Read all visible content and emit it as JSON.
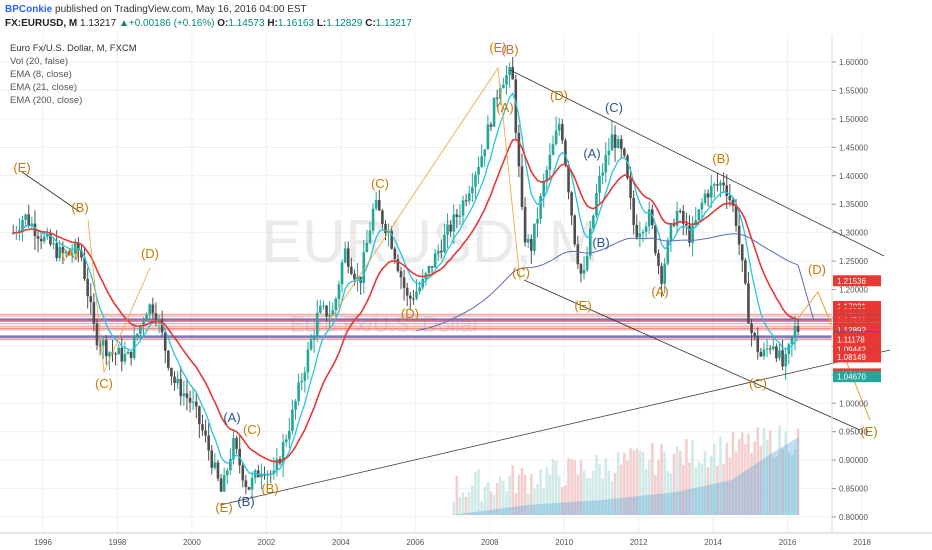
{
  "header": {
    "user": "BPConkie",
    "published": " published on TradingView.com, May 16, 2016 04:00 EST",
    "symbol": "FX:EURUSD, M",
    "last": "1.13217",
    "change": "+0.00186 (+0.16%)",
    "o_label": "O:",
    "o": "1.14573",
    "h_label": "H:",
    "h": "1.16163",
    "l_label": "L:",
    "l": "1.12829",
    "c_label": "C:",
    "c": "1.13217"
  },
  "legend": [
    "Euro Fx/U.S. Dollar, M, FXCM",
    "Vol (20, false)",
    "EMA (8, close)",
    "EMA (21, close)",
    "EMA (200, close)"
  ],
  "watermark": {
    "symbol": "EURUSD, M",
    "name": "Euro Fx/U.S. Dollar"
  },
  "colors": {
    "up": "#26a69a",
    "down": "#4e4e4e",
    "ema8": "#26c6da",
    "ema21": "#e53935",
    "ema200": "#5c6bc0",
    "wave_orange": "#c77a00",
    "wave_blue": "#2b5390",
    "hline_red": "#e53935",
    "hline_blue": "#3f51b5"
  },
  "chart_data": {
    "type": "candlestick",
    "x_ticks": [
      "1996",
      "1998",
      "2000",
      "2002",
      "2004",
      "2006",
      "2008",
      "2010",
      "2012",
      "2014",
      "2016",
      "2018"
    ],
    "y_ticks": [
      "1.60000",
      "1.55000",
      "1.50000",
      "1.45000",
      "1.40000",
      "1.35000",
      "1.30000",
      "1.25000",
      "1.20000",
      "1.15000",
      "1.10000",
      "1.05000",
      "1.00000",
      "0.95000",
      "0.90000",
      "0.85000",
      "0.80000"
    ],
    "y_range": [
      0.79,
      1.64
    ],
    "price_tags": [
      {
        "y": 1.21536,
        "label": "1.21536",
        "color": "#e53935"
      },
      {
        "y": 1.17021,
        "label": "1.17021",
        "color": "#e53935"
      },
      {
        "y": 1.1618,
        "label": "1.16180",
        "color": "#e53935"
      },
      {
        "y": 1.15647,
        "label": "1.15647",
        "color": "#e53935"
      },
      {
        "y": 1.15333,
        "label": "1.15333",
        "color": "#e53935"
      },
      {
        "y": 1.14863,
        "label": "1.14863",
        "color": "#e53935"
      },
      {
        "y": 1.14595,
        "label": "1.14595",
        "color": "#3f51b5"
      },
      {
        "y": 1.14541,
        "label": "1.14541",
        "color": "#e53935"
      },
      {
        "y": 1.13999,
        "label": "1.13999",
        "color": "#e53935"
      },
      {
        "y": 1.13563,
        "label": "1.13563",
        "color": "#e53935"
      },
      {
        "y": 1.13217,
        "label": "1.13217",
        "color": "#9e9e9e"
      },
      {
        "y": 1.13161,
        "label": "1.13161",
        "color": "#e53935"
      },
      {
        "y": 1.12892,
        "label": "1.12892",
        "color": "#e53935"
      },
      {
        "y": 1.11676,
        "label": "1.11676",
        "color": "#3f51b5"
      },
      {
        "y": 1.11524,
        "label": "1.11524",
        "color": "#e53935"
      },
      {
        "y": 1.11178,
        "label": "1.11178",
        "color": "#e53935"
      },
      {
        "y": 1.09442,
        "label": "1.09442",
        "color": "#e53935"
      },
      {
        "y": 1.08245,
        "label": "1.08245",
        "color": "#e53935"
      },
      {
        "y": 1.08149,
        "label": "1.08149",
        "color": "#e53935"
      },
      {
        "y": 1.0516,
        "label": "1.05160",
        "color": "#e53935"
      },
      {
        "y": 1.0467,
        "label": "1.04670",
        "color": "#26a69a"
      }
    ],
    "waves": [
      {
        "t": "(E)",
        "c": "o",
        "x": 22,
        "y": 172
      },
      {
        "t": "(B)",
        "c": "o",
        "x": 80,
        "y": 212
      },
      {
        "t": "(A)",
        "c": "o",
        "x": 70,
        "y": 258
      },
      {
        "t": "(D)",
        "c": "o",
        "x": 150,
        "y": 258
      },
      {
        "t": "(C)",
        "c": "o",
        "x": 104,
        "y": 388
      },
      {
        "t": "(A)",
        "c": "b",
        "x": 232,
        "y": 422
      },
      {
        "t": "(C)",
        "c": "o",
        "x": 252,
        "y": 434
      },
      {
        "t": "(B)",
        "c": "o",
        "x": 270,
        "y": 493
      },
      {
        "t": "(E)",
        "c": "o",
        "x": 224,
        "y": 512
      },
      {
        "t": "(B)",
        "c": "b",
        "x": 246,
        "y": 506
      },
      {
        "t": "(C)",
        "c": "o",
        "x": 380,
        "y": 188
      },
      {
        "t": "(D)",
        "c": "o",
        "x": 410,
        "y": 318
      },
      {
        "t": "(E)",
        "c": "o",
        "x": 498,
        "y": 52
      },
      {
        "t": "(B)",
        "c": "o",
        "x": 510,
        "y": 54
      },
      {
        "t": "(A)",
        "c": "o",
        "x": 505,
        "y": 112
      },
      {
        "t": "(D)",
        "c": "o",
        "x": 559,
        "y": 100
      },
      {
        "t": "(C)",
        "c": "b",
        "x": 614,
        "y": 112
      },
      {
        "t": "(A)",
        "c": "b",
        "x": 592,
        "y": 158
      },
      {
        "t": "(B)",
        "c": "b",
        "x": 601,
        "y": 247
      },
      {
        "t": "(C)",
        "c": "o",
        "x": 521,
        "y": 277
      },
      {
        "t": "(E)",
        "c": "o",
        "x": 583,
        "y": 310
      },
      {
        "t": "(A)",
        "c": "o",
        "x": 660,
        "y": 296
      },
      {
        "t": "(B)",
        "c": "o",
        "x": 721,
        "y": 163
      },
      {
        "t": "(D)",
        "c": "o",
        "x": 817,
        "y": 274
      },
      {
        "t": "(C)",
        "c": "o",
        "x": 758,
        "y": 388
      },
      {
        "t": "(E)",
        "c": "o",
        "x": 869,
        "y": 436
      }
    ],
    "volume_range": [
      0,
      1
    ],
    "ema200_note": "EMA 200 close"
  }
}
